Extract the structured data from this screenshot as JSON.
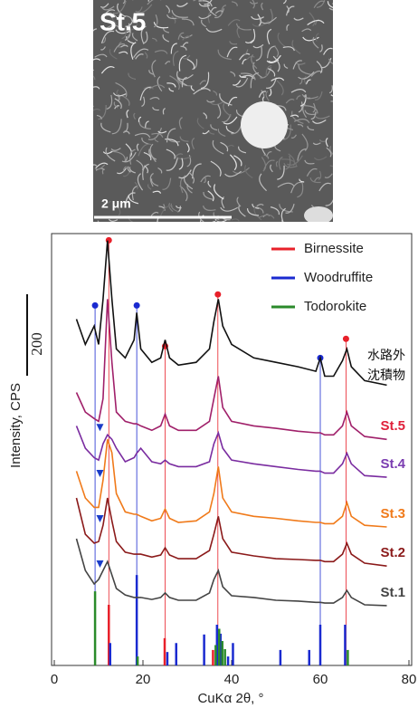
{
  "image": {
    "label": "St.5",
    "scale_label": "2 μm"
  },
  "chart_data": {
    "type": "line",
    "x_label": "CuKα 2θ, °",
    "y_label": "Intensity, CPS",
    "scale_bar": 200,
    "xlim": [
      0,
      80
    ],
    "xticks": [
      0,
      20,
      40,
      60,
      80
    ],
    "ylim": [
      0,
      1060
    ],
    "x": [
      5,
      7,
      9,
      10,
      11,
      12,
      13,
      14,
      16,
      18,
      18.6,
      19.5,
      22,
      24,
      25,
      26,
      28,
      32,
      35,
      36,
      37,
      38,
      40,
      45,
      50,
      55,
      59,
      60,
      61,
      63,
      65,
      66,
      67,
      70,
      75
    ],
    "series": [
      {
        "label": [
          "水路外",
          "沈積物"
        ],
        "color": "#111111",
        "label_color": "#111111",
        "values": [
          850,
          788,
          833,
          788,
          899,
          1043,
          899,
          777,
          755,
          799,
          866,
          777,
          744,
          755,
          799,
          755,
          737,
          744,
          777,
          844,
          899,
          833,
          788,
          755,
          744,
          733,
          722,
          755,
          710,
          710,
          748,
          777,
          733,
          699,
          688
        ]
      },
      {
        "label": "St.5",
        "color": "#a0206a",
        "label_color": "#e0203a",
        "values": [
          670,
          622,
          606,
          599,
          655,
          899,
          744,
          622,
          599,
          593,
          593,
          588,
          577,
          588,
          617,
          588,
          577,
          577,
          599,
          655,
          710,
          633,
          599,
          588,
          582,
          575,
          571,
          571,
          566,
          566,
          588,
          622,
          588,
          562,
          555
        ]
      },
      {
        "label": "St.4",
        "color": "#7a2ca0",
        "label_color": "#7a3cb0",
        "values": [
          588,
          533,
          510,
          504,
          544,
          566,
          555,
          533,
          500,
          510,
          521,
          533,
          500,
          495,
          504,
          495,
          488,
          488,
          500,
          544,
          571,
          533,
          504,
          495,
          488,
          481,
          477,
          477,
          472,
          472,
          495,
          521,
          495,
          466,
          462
        ]
      },
      {
        "label": "St.3",
        "color": "#f07a1a",
        "label_color": "#f07a1a",
        "values": [
          477,
          411,
          388,
          388,
          455,
          555,
          522,
          422,
          377,
          371,
          371,
          366,
          355,
          361,
          384,
          361,
          351,
          355,
          377,
          422,
          488,
          411,
          377,
          366,
          361,
          355,
          351,
          351,
          348,
          348,
          366,
          400,
          366,
          344,
          340
        ]
      },
      {
        "label": "St.2",
        "color": "#8b1a1a",
        "label_color": "#8b1a1a",
        "values": [
          411,
          322,
          300,
          304,
          344,
          411,
          355,
          304,
          278,
          273,
          273,
          273,
          266,
          271,
          289,
          271,
          262,
          262,
          282,
          322,
          366,
          311,
          278,
          269,
          262,
          260,
          258,
          258,
          255,
          255,
          273,
          300,
          273,
          251,
          244
        ]
      },
      {
        "label": "St.1",
        "color": "#444444",
        "label_color": "#444444",
        "values": [
          311,
          233,
          200,
          211,
          233,
          255,
          222,
          189,
          173,
          167,
          167,
          167,
          162,
          167,
          178,
          167,
          160,
          160,
          178,
          211,
          233,
          193,
          171,
          167,
          160,
          158,
          155,
          155,
          153,
          153,
          167,
          184,
          167,
          149,
          147
        ]
      }
    ],
    "references": [
      {
        "name": "Birnessite",
        "color": "#e8202a",
        "sticks_x": [
          12.3,
          24.9,
          35.8
        ],
        "sticks": [
          149,
          67,
          38
        ],
        "lines_x": [
          12.3,
          25,
          36.9,
          65.8
        ],
        "markers": [
          1037,
          777,
          904,
          795
        ]
      },
      {
        "name": "Woodruffite",
        "color": "#1a2ad0",
        "sticks_x": [
          12.6,
          18.6,
          25.5,
          27.5,
          33.8,
          36.7,
          37.5,
          39.2,
          40.3,
          51,
          57.5,
          60,
          65.6
        ],
        "sticks": [
          55,
          222,
          33,
          55,
          76,
          100,
          78,
          22,
          55,
          38,
          38,
          100,
          100
        ],
        "lines_x": [
          9.2,
          18.6,
          60
        ],
        "markers": [
          877,
          877,
          748
        ]
      },
      {
        "name": "Todorokite",
        "color": "#2a8a2a",
        "sticks_x": [
          9.2,
          18.8,
          36.4,
          37.2,
          37.9,
          38.5,
          66.2
        ],
        "sticks": [
          182,
          22,
          50,
          90,
          60,
          40,
          38
        ],
        "lines_x": [],
        "markers": []
      }
    ],
    "triangles": {
      "color": "#1a3cc8",
      "x": [
        10.3,
        10.3,
        10.3,
        10.3
      ],
      "values": [
        584,
        471,
        360,
        249
      ]
    }
  }
}
